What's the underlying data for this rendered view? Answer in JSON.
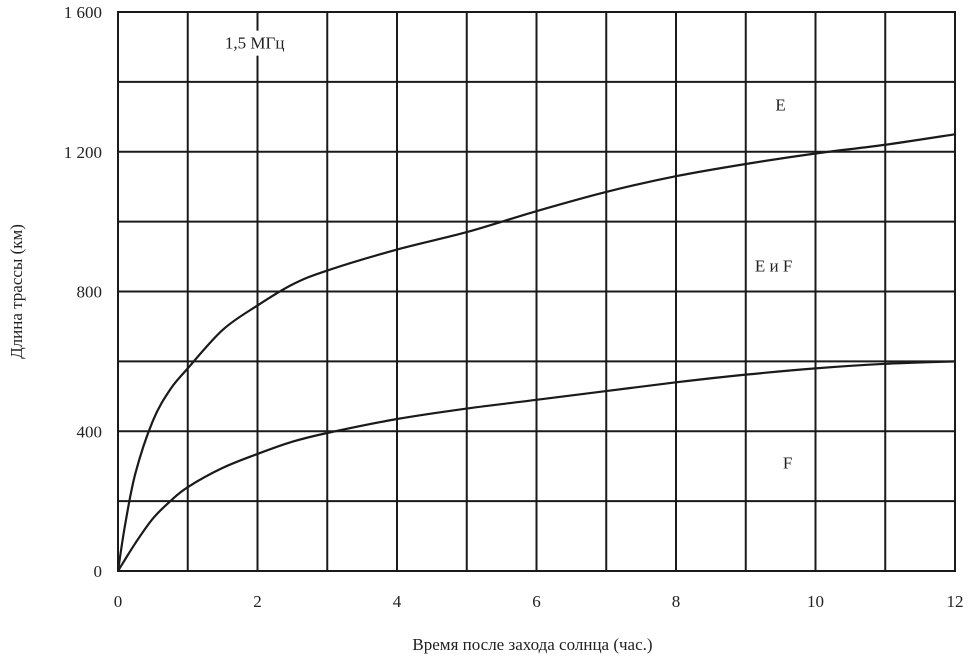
{
  "chart_data": {
    "type": "line",
    "title": "",
    "frequency_label": "1,5 МГц",
    "xlabel": "Время после захода солнца (час.)",
    "ylabel": "Длина трассы (км)",
    "xlim": [
      0,
      12
    ],
    "ylim": [
      0,
      1600
    ],
    "x_ticks": [
      0,
      2,
      4,
      6,
      8,
      10,
      12
    ],
    "y_ticks": [
      0,
      400,
      800,
      1200,
      1600
    ],
    "x_tick_labels": [
      "0",
      "2",
      "4",
      "6",
      "8",
      "10",
      "12"
    ],
    "y_tick_labels": [
      "0",
      "400",
      "800",
      "1 200",
      "1 600"
    ],
    "x_grid_step": 1,
    "y_grid_step": 200,
    "grid": true,
    "series": [
      {
        "x": [
          0,
          0.1,
          0.25,
          0.5,
          0.75,
          1,
          1.5,
          2,
          2.5,
          3,
          4,
          5,
          6,
          7,
          8,
          9,
          10,
          11,
          12
        ],
        "y": [
          0,
          130,
          280,
          430,
          520,
          580,
          690,
          760,
          820,
          860,
          920,
          970,
          1030,
          1085,
          1130,
          1165,
          1195,
          1220,
          1250
        ]
      },
      {
        "x": [
          0,
          0.25,
          0.5,
          0.75,
          1,
          1.5,
          2,
          2.5,
          3,
          4,
          5,
          6,
          7,
          8,
          9,
          10,
          11,
          12
        ],
        "y": [
          0,
          80,
          150,
          200,
          240,
          295,
          335,
          370,
          395,
          435,
          465,
          490,
          515,
          540,
          562,
          580,
          593,
          600
        ]
      }
    ],
    "region_labels": [
      {
        "text": "E",
        "x": 9.5,
        "y": 1335
      },
      {
        "text": "E и F",
        "x": 9.4,
        "y": 875
      },
      {
        "text": "F",
        "x": 9.6,
        "y": 310
      }
    ]
  }
}
